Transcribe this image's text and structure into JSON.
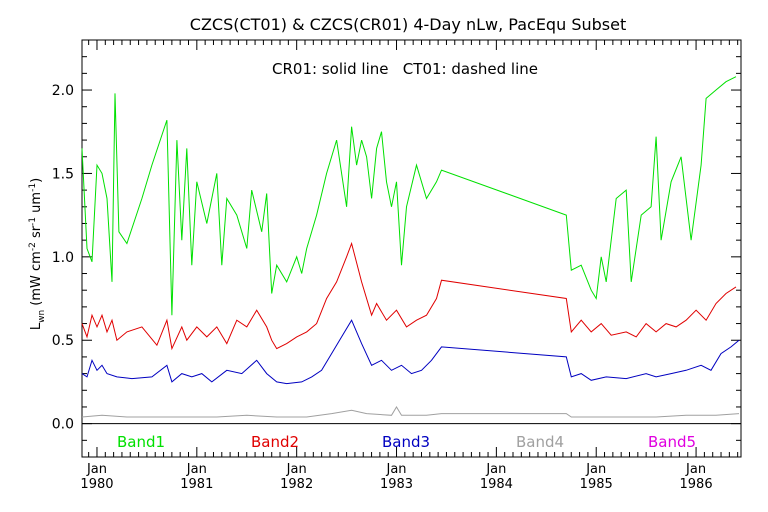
{
  "chart_data": {
    "type": "line",
    "title": "CZCS(CT01) & CZCS(CR01) 4-Day nLw, PacEqu Subset",
    "subtitle": "CR01: solid line   CT01: dashed line",
    "ylabel_main": "L",
    "ylabel_sub": "wn",
    "ylabel_rest": " (mW cm",
    "ylabel_sup1": "-2",
    "ylabel_mid": " sr",
    "ylabel_sup2": "-1",
    "ylabel_um": " um",
    "ylabel_sup3": "-1",
    "ylabel_close": ")",
    "ylim": [
      -0.2,
      2.3
    ],
    "xlim": [
      1979.85,
      1986.45
    ],
    "grid": false,
    "y_ticks": [
      "0.0",
      "0.5",
      "1.0",
      "1.5",
      "2.0"
    ],
    "x_ticks": [
      {
        "month": "Jan",
        "year": "1980"
      },
      {
        "month": "Jan",
        "year": "1981"
      },
      {
        "month": "Jan",
        "year": "1982"
      },
      {
        "month": "Jan",
        "year": "1983"
      },
      {
        "month": "Jan",
        "year": "1984"
      },
      {
        "month": "Jan",
        "year": "1985"
      },
      {
        "month": "Jan",
        "year": "1986"
      }
    ],
    "colors": {
      "Band1": "#00e000",
      "Band2": "#e00000",
      "Band3": "#0000c0",
      "Band4": "#a0a0a0",
      "Band5": "#e000e0"
    },
    "legend_labels": [
      "Band1",
      "Band2",
      "Band3",
      "Band4",
      "Band5"
    ],
    "series": [
      {
        "name": "Band1",
        "points": [
          [
            1979.85,
            1.65
          ],
          [
            1979.9,
            1.05
          ],
          [
            1979.95,
            0.97
          ],
          [
            1980.0,
            1.55
          ],
          [
            1980.05,
            1.5
          ],
          [
            1980.1,
            1.35
          ],
          [
            1980.15,
            0.85
          ],
          [
            1980.18,
            1.98
          ],
          [
            1980.22,
            1.15
          ],
          [
            1980.3,
            1.08
          ],
          [
            1980.45,
            1.35
          ],
          [
            1980.55,
            1.55
          ],
          [
            1980.7,
            1.82
          ],
          [
            1980.75,
            0.65
          ],
          [
            1980.8,
            1.7
          ],
          [
            1980.85,
            1.1
          ],
          [
            1980.9,
            1.65
          ],
          [
            1980.95,
            0.95
          ],
          [
            1981.0,
            1.45
          ],
          [
            1981.1,
            1.2
          ],
          [
            1981.2,
            1.5
          ],
          [
            1981.25,
            0.95
          ],
          [
            1981.3,
            1.35
          ],
          [
            1981.4,
            1.25
          ],
          [
            1981.5,
            1.05
          ],
          [
            1981.55,
            1.4
          ],
          [
            1981.65,
            1.15
          ],
          [
            1981.7,
            1.38
          ],
          [
            1981.75,
            0.78
          ],
          [
            1981.8,
            0.95
          ],
          [
            1981.9,
            0.85
          ],
          [
            1982.0,
            1.0
          ],
          [
            1982.05,
            0.9
          ],
          [
            1982.1,
            1.05
          ],
          [
            1982.2,
            1.25
          ],
          [
            1982.3,
            1.5
          ],
          [
            1982.4,
            1.7
          ],
          [
            1982.5,
            1.3
          ],
          [
            1982.55,
            1.78
          ],
          [
            1982.6,
            1.55
          ],
          [
            1982.65,
            1.7
          ],
          [
            1982.7,
            1.6
          ],
          [
            1982.75,
            1.35
          ],
          [
            1982.8,
            1.65
          ],
          [
            1982.85,
            1.75
          ],
          [
            1982.9,
            1.45
          ],
          [
            1982.95,
            1.3
          ],
          [
            1983.0,
            1.45
          ],
          [
            1983.05,
            0.95
          ],
          [
            1983.1,
            1.3
          ],
          [
            1983.2,
            1.55
          ],
          [
            1983.3,
            1.35
          ],
          [
            1983.4,
            1.45
          ],
          [
            1983.45,
            1.52
          ],
          [
            1984.7,
            1.25
          ],
          [
            1984.75,
            0.92
          ],
          [
            1984.85,
            0.95
          ],
          [
            1984.95,
            0.8
          ],
          [
            1985.0,
            0.75
          ],
          [
            1985.05,
            1.0
          ],
          [
            1985.1,
            0.85
          ],
          [
            1985.2,
            1.35
          ],
          [
            1985.3,
            1.4
          ],
          [
            1985.35,
            0.85
          ],
          [
            1985.45,
            1.25
          ],
          [
            1985.55,
            1.3
          ],
          [
            1985.6,
            1.72
          ],
          [
            1985.65,
            1.1
          ],
          [
            1985.75,
            1.45
          ],
          [
            1985.85,
            1.6
          ],
          [
            1985.95,
            1.1
          ],
          [
            1986.05,
            1.55
          ],
          [
            1986.1,
            1.95
          ],
          [
            1986.2,
            2.0
          ],
          [
            1986.3,
            2.05
          ],
          [
            1986.4,
            2.08
          ]
        ]
      },
      {
        "name": "Band2",
        "points": [
          [
            1979.85,
            0.6
          ],
          [
            1979.9,
            0.52
          ],
          [
            1979.95,
            0.65
          ],
          [
            1980.0,
            0.58
          ],
          [
            1980.05,
            0.65
          ],
          [
            1980.1,
            0.55
          ],
          [
            1980.15,
            0.62
          ],
          [
            1980.2,
            0.5
          ],
          [
            1980.3,
            0.55
          ],
          [
            1980.45,
            0.58
          ],
          [
            1980.6,
            0.47
          ],
          [
            1980.7,
            0.62
          ],
          [
            1980.75,
            0.45
          ],
          [
            1980.85,
            0.58
          ],
          [
            1980.9,
            0.5
          ],
          [
            1981.0,
            0.58
          ],
          [
            1981.1,
            0.52
          ],
          [
            1981.2,
            0.58
          ],
          [
            1981.3,
            0.48
          ],
          [
            1981.4,
            0.62
          ],
          [
            1981.5,
            0.58
          ],
          [
            1981.6,
            0.68
          ],
          [
            1981.7,
            0.58
          ],
          [
            1981.75,
            0.5
          ],
          [
            1981.8,
            0.45
          ],
          [
            1981.9,
            0.48
          ],
          [
            1982.0,
            0.52
          ],
          [
            1982.1,
            0.55
          ],
          [
            1982.2,
            0.6
          ],
          [
            1982.3,
            0.75
          ],
          [
            1982.4,
            0.85
          ],
          [
            1982.5,
            1.0
          ],
          [
            1982.55,
            1.08
          ],
          [
            1982.65,
            0.85
          ],
          [
            1982.75,
            0.65
          ],
          [
            1982.8,
            0.72
          ],
          [
            1982.9,
            0.62
          ],
          [
            1983.0,
            0.68
          ],
          [
            1983.1,
            0.58
          ],
          [
            1983.2,
            0.62
          ],
          [
            1983.3,
            0.65
          ],
          [
            1983.4,
            0.75
          ],
          [
            1983.45,
            0.86
          ],
          [
            1984.7,
            0.75
          ],
          [
            1984.75,
            0.55
          ],
          [
            1984.85,
            0.62
          ],
          [
            1984.95,
            0.55
          ],
          [
            1985.05,
            0.6
          ],
          [
            1985.15,
            0.53
          ],
          [
            1985.3,
            0.55
          ],
          [
            1985.4,
            0.52
          ],
          [
            1985.5,
            0.6
          ],
          [
            1985.6,
            0.55
          ],
          [
            1985.7,
            0.6
          ],
          [
            1985.8,
            0.58
          ],
          [
            1985.9,
            0.62
          ],
          [
            1986.0,
            0.68
          ],
          [
            1986.1,
            0.62
          ],
          [
            1986.2,
            0.72
          ],
          [
            1986.3,
            0.78
          ],
          [
            1986.4,
            0.82
          ]
        ]
      },
      {
        "name": "Band3",
        "points": [
          [
            1979.85,
            0.3
          ],
          [
            1979.9,
            0.28
          ],
          [
            1979.95,
            0.38
          ],
          [
            1980.0,
            0.32
          ],
          [
            1980.05,
            0.35
          ],
          [
            1980.1,
            0.3
          ],
          [
            1980.2,
            0.28
          ],
          [
            1980.35,
            0.27
          ],
          [
            1980.55,
            0.28
          ],
          [
            1980.7,
            0.35
          ],
          [
            1980.75,
            0.25
          ],
          [
            1980.85,
            0.3
          ],
          [
            1980.95,
            0.28
          ],
          [
            1981.05,
            0.3
          ],
          [
            1981.15,
            0.25
          ],
          [
            1981.3,
            0.32
          ],
          [
            1981.45,
            0.3
          ],
          [
            1981.6,
            0.38
          ],
          [
            1981.7,
            0.3
          ],
          [
            1981.8,
            0.25
          ],
          [
            1981.9,
            0.24
          ],
          [
            1982.05,
            0.25
          ],
          [
            1982.15,
            0.28
          ],
          [
            1982.25,
            0.32
          ],
          [
            1982.35,
            0.42
          ],
          [
            1982.45,
            0.52
          ],
          [
            1982.55,
            0.62
          ],
          [
            1982.65,
            0.48
          ],
          [
            1982.75,
            0.35
          ],
          [
            1982.85,
            0.38
          ],
          [
            1982.95,
            0.32
          ],
          [
            1983.05,
            0.35
          ],
          [
            1983.15,
            0.3
          ],
          [
            1983.25,
            0.32
          ],
          [
            1983.35,
            0.38
          ],
          [
            1983.45,
            0.46
          ],
          [
            1984.7,
            0.4
          ],
          [
            1984.75,
            0.28
          ],
          [
            1984.85,
            0.3
          ],
          [
            1984.95,
            0.26
          ],
          [
            1985.1,
            0.28
          ],
          [
            1985.3,
            0.27
          ],
          [
            1985.5,
            0.3
          ],
          [
            1985.6,
            0.28
          ],
          [
            1985.75,
            0.3
          ],
          [
            1985.9,
            0.32
          ],
          [
            1986.05,
            0.35
          ],
          [
            1986.15,
            0.32
          ],
          [
            1986.25,
            0.42
          ],
          [
            1986.35,
            0.46
          ],
          [
            1986.43,
            0.5
          ]
        ]
      },
      {
        "name": "Band4",
        "points": [
          [
            1979.85,
            0.04
          ],
          [
            1980.05,
            0.05
          ],
          [
            1980.3,
            0.04
          ],
          [
            1980.6,
            0.04
          ],
          [
            1980.9,
            0.04
          ],
          [
            1981.2,
            0.04
          ],
          [
            1981.5,
            0.05
          ],
          [
            1981.8,
            0.04
          ],
          [
            1982.1,
            0.04
          ],
          [
            1982.35,
            0.06
          ],
          [
            1982.55,
            0.08
          ],
          [
            1982.7,
            0.06
          ],
          [
            1982.95,
            0.05
          ],
          [
            1983.0,
            0.1
          ],
          [
            1983.05,
            0.05
          ],
          [
            1983.3,
            0.05
          ],
          [
            1983.45,
            0.06
          ],
          [
            1984.7,
            0.06
          ],
          [
            1984.75,
            0.04
          ],
          [
            1985.0,
            0.04
          ],
          [
            1985.3,
            0.04
          ],
          [
            1985.6,
            0.04
          ],
          [
            1985.9,
            0.05
          ],
          [
            1986.2,
            0.05
          ],
          [
            1986.43,
            0.06
          ]
        ]
      }
    ]
  }
}
